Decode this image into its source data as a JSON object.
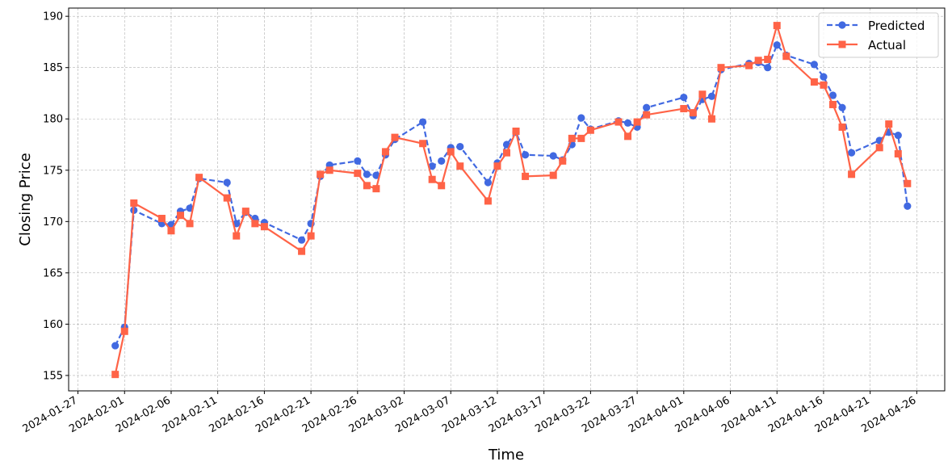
{
  "chart_data": {
    "type": "line",
    "xlabel": "Time",
    "ylabel": "Closing Price",
    "x_axis_type": "date",
    "xlim": [
      "2024-01-26",
      "2024-04-29"
    ],
    "ylim": [
      153.5,
      190.8
    ],
    "x_ticks": [
      "2024-01-27",
      "2024-02-01",
      "2024-02-06",
      "2024-02-11",
      "2024-02-16",
      "2024-02-21",
      "2024-02-26",
      "2024-03-02",
      "2024-03-07",
      "2024-03-12",
      "2024-03-17",
      "2024-03-22",
      "2024-03-27",
      "2024-04-01",
      "2024-04-06",
      "2024-04-11",
      "2024-04-16",
      "2024-04-21",
      "2024-04-26"
    ],
    "y_ticks": [
      155,
      160,
      165,
      170,
      175,
      180,
      185,
      190
    ],
    "grid": true,
    "legend_position": "top-right",
    "x": [
      "2024-01-31",
      "2024-02-01",
      "2024-02-02",
      "2024-02-05",
      "2024-02-06",
      "2024-02-07",
      "2024-02-08",
      "2024-02-09",
      "2024-02-12",
      "2024-02-13",
      "2024-02-14",
      "2024-02-15",
      "2024-02-16",
      "2024-02-20",
      "2024-02-21",
      "2024-02-22",
      "2024-02-23",
      "2024-02-26",
      "2024-02-27",
      "2024-02-28",
      "2024-02-29",
      "2024-03-01",
      "2024-03-04",
      "2024-03-05",
      "2024-03-06",
      "2024-03-07",
      "2024-03-08",
      "2024-03-11",
      "2024-03-12",
      "2024-03-13",
      "2024-03-14",
      "2024-03-15",
      "2024-03-18",
      "2024-03-19",
      "2024-03-20",
      "2024-03-21",
      "2024-03-22",
      "2024-03-25",
      "2024-03-26",
      "2024-03-27",
      "2024-03-28",
      "2024-04-01",
      "2024-04-02",
      "2024-04-03",
      "2024-04-04",
      "2024-04-05",
      "2024-04-08",
      "2024-04-09",
      "2024-04-10",
      "2024-04-11",
      "2024-04-12",
      "2024-04-15",
      "2024-04-16",
      "2024-04-17",
      "2024-04-18",
      "2024-04-19",
      "2024-04-22",
      "2024-04-23",
      "2024-04-24",
      "2024-04-25"
    ],
    "series": [
      {
        "name": "Predicted",
        "color": "#4169e1",
        "line_style": "dashed",
        "marker": "circle",
        "values": [
          157.9,
          159.7,
          171.1,
          169.8,
          169.7,
          171.0,
          171.3,
          174.2,
          173.8,
          169.8,
          170.9,
          170.3,
          169.9,
          168.2,
          169.8,
          174.4,
          175.5,
          175.9,
          174.6,
          174.5,
          176.5,
          178.0,
          179.7,
          175.4,
          175.9,
          177.2,
          177.3,
          173.8,
          175.7,
          177.5,
          178.7,
          176.5,
          176.4,
          176.0,
          177.5,
          180.1,
          179.0,
          179.8,
          179.6,
          179.2,
          181.1,
          182.1,
          180.3,
          181.9,
          182.2,
          184.8,
          185.4,
          185.5,
          185.0,
          187.2,
          186.2,
          185.3,
          184.1,
          182.3,
          181.1,
          176.7,
          177.9,
          178.7,
          178.4,
          171.5
        ]
      },
      {
        "name": "Actual",
        "color": "#ff6347",
        "line_style": "solid",
        "marker": "square",
        "values": [
          155.1,
          159.3,
          171.8,
          170.3,
          169.1,
          170.6,
          169.8,
          174.3,
          172.3,
          168.6,
          171.0,
          169.8,
          169.5,
          167.1,
          168.6,
          174.6,
          175.0,
          174.7,
          173.5,
          173.2,
          176.8,
          178.2,
          177.6,
          174.1,
          173.5,
          176.8,
          175.4,
          172.0,
          175.4,
          176.7,
          178.8,
          174.4,
          174.5,
          175.9,
          178.1,
          178.1,
          178.9,
          179.7,
          178.3,
          179.7,
          180.4,
          181.0,
          180.6,
          182.4,
          180.0,
          185.0,
          185.2,
          185.7,
          185.8,
          189.1,
          186.1,
          183.6,
          183.3,
          181.4,
          179.2,
          174.6,
          177.2,
          179.5,
          176.6,
          173.7
        ]
      }
    ]
  }
}
